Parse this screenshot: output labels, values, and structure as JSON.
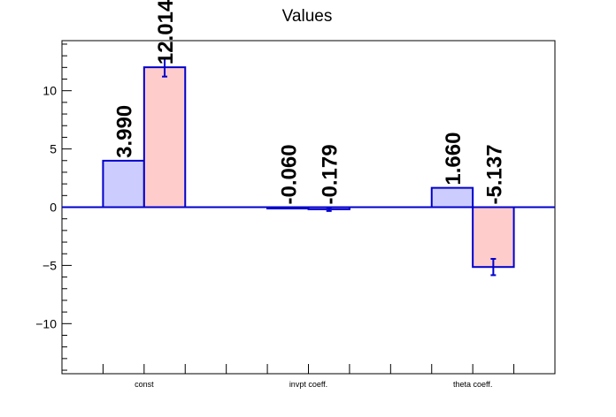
{
  "chart_data": {
    "type": "bar",
    "title": "Values",
    "categories": [
      "const",
      "invpt coeff.",
      "theta coeff."
    ],
    "series": [
      {
        "values": [
          3.99,
          -0.06,
          1.66
        ],
        "errors": [
          0,
          0,
          0
        ]
      },
      {
        "values": [
          12.014,
          -0.179,
          -5.137
        ],
        "errors": [
          0.8,
          0.15,
          0.7
        ]
      }
    ],
    "value_labels": [
      [
        "3.990",
        "-0.060",
        "1.660"
      ],
      [
        "12.014",
        "-0.179",
        "-5.137"
      ]
    ],
    "ylim": [
      -14.3,
      14.3
    ],
    "yticks": [
      -10,
      -5,
      0,
      5,
      10
    ],
    "ytick_labels": [
      "−10",
      "−5",
      "0",
      "5",
      "10"
    ],
    "xlabel": "",
    "ylabel": "",
    "grid": false,
    "legend": "none",
    "colors": {
      "series_fill": [
        "#ccccff",
        "#ffcccc"
      ],
      "bar_stroke": "#0000cc",
      "zero_line": "#0000cc",
      "axis": "#000000"
    }
  }
}
